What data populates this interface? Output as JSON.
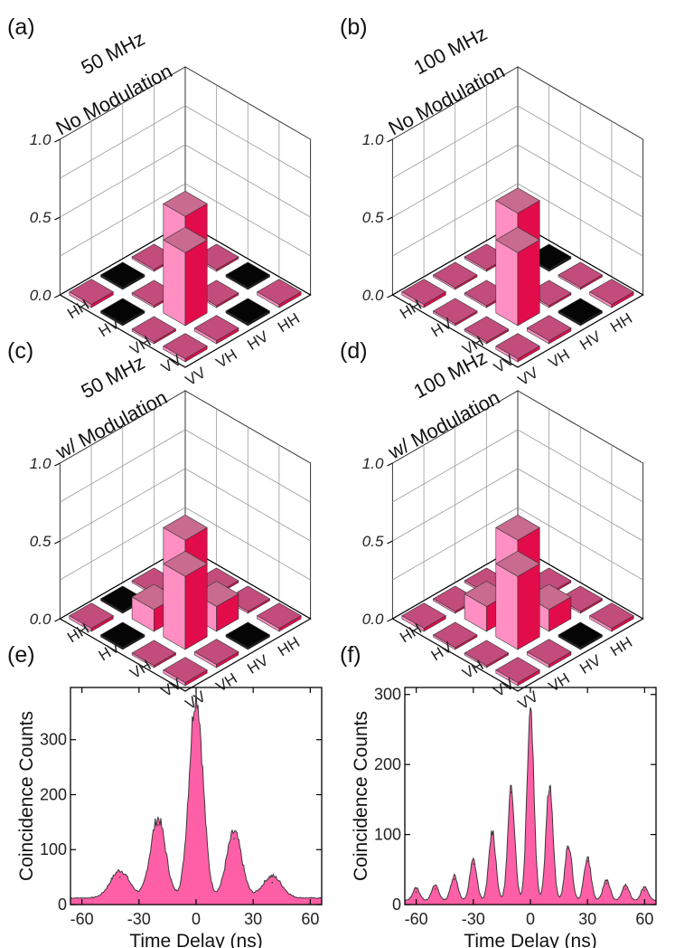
{
  "colors": {
    "bar_light": "#ff8fc2",
    "bar_mid": "#ef3f86",
    "bar_dark": "#e30c4a",
    "bar_top": "#c86b8f",
    "tile_top": "#c24d7d",
    "tile_edge": "#e81f5a",
    "dark_tile": "#050505",
    "hist_fill": "#ff5fa6",
    "hist_edge": "#3a3a3a",
    "grid": "#9a9a9a",
    "axis": "#000000"
  },
  "chart_data": [
    {
      "type": "bar3d",
      "panel": "(a)",
      "title_lines": [
        "50 MHz",
        "No Modulation"
      ],
      "row_labels": [
        "HH",
        "HV",
        "VH",
        "VV"
      ],
      "col_labels": [
        "HH",
        "HV",
        "VH",
        "VV"
      ],
      "z_ticks": [
        "0.0",
        "0.5",
        "1.0"
      ],
      "zlim": [
        0,
        1
      ],
      "values": [
        [
          0.02,
          0.01,
          0.01,
          0.02
        ],
        [
          0.01,
          0.47,
          0.01,
          0.01
        ],
        [
          0.01,
          0.01,
          0.47,
          0.02
        ],
        [
          0.02,
          0.01,
          0.01,
          0.02
        ]
      ],
      "dark_cells": [
        [
          0,
          2
        ],
        [
          1,
          3
        ],
        [
          2,
          0
        ],
        [
          3,
          1
        ]
      ]
    },
    {
      "type": "bar3d",
      "panel": "(b)",
      "title_lines": [
        "100 MHz",
        "No Modulation"
      ],
      "row_labels": [
        "HH",
        "HV",
        "VH",
        "VV"
      ],
      "col_labels": [
        "HH",
        "HV",
        "VH",
        "VV"
      ],
      "z_ticks": [
        "0.0",
        "0.5",
        "1.0"
      ],
      "zlim": [
        0,
        1
      ],
      "values": [
        [
          0.02,
          0.01,
          0.01,
          0.02
        ],
        [
          0.01,
          0.49,
          0.01,
          0.01
        ],
        [
          0.01,
          0.01,
          0.47,
          0.02
        ],
        [
          0.02,
          0.01,
          0.01,
          0.02
        ]
      ],
      "dark_cells": [
        [
          0,
          1
        ],
        [
          1,
          3
        ]
      ]
    },
    {
      "type": "bar3d",
      "panel": "(c)",
      "title_lines": [
        "50 MHz",
        "w/ Modulation"
      ],
      "row_labels": [
        "HH",
        "HV",
        "VH",
        "VV"
      ],
      "col_labels": [
        "HH",
        "HV",
        "VH",
        "VV"
      ],
      "z_ticks": [
        "0.0",
        "0.5",
        "1.0"
      ],
      "zlim": [
        0,
        1
      ],
      "values": [
        [
          0.02,
          0.01,
          0.01,
          0.02
        ],
        [
          0.01,
          0.47,
          0.16,
          0.01
        ],
        [
          0.01,
          0.14,
          0.47,
          0.02
        ],
        [
          0.02,
          0.01,
          0.01,
          0.02
        ]
      ],
      "dark_cells": [
        [
          1,
          3
        ],
        [
          2,
          0
        ],
        [
          3,
          1
        ]
      ]
    },
    {
      "type": "bar3d",
      "panel": "(d)",
      "title_lines": [
        "100 MHz",
        "w/ Modulation"
      ],
      "row_labels": [
        "HH",
        "HV",
        "VH",
        "VV"
      ],
      "col_labels": [
        "HH",
        "HV",
        "VH",
        "VV"
      ],
      "z_ticks": [
        "0.0",
        "0.5",
        "1.0"
      ],
      "zlim": [
        0,
        1
      ],
      "values": [
        [
          0.02,
          0.01,
          0.01,
          0.02
        ],
        [
          0.01,
          0.47,
          0.14,
          0.01
        ],
        [
          0.01,
          0.16,
          0.47,
          0.02
        ],
        [
          0.02,
          0.01,
          0.01,
          0.02
        ]
      ],
      "dark_cells": [
        [
          1,
          3
        ]
      ]
    },
    {
      "type": "area",
      "panel": "(e)",
      "xlabel": "Time Delay (ns)",
      "ylabel": "Coincidence Counts",
      "xlim": [
        -66,
        66
      ],
      "ylim": [
        0,
        395
      ],
      "x_ticks": [
        -60,
        -30,
        0,
        30,
        60
      ],
      "y_ticks": [
        0,
        100,
        200,
        300
      ],
      "baseline": 12,
      "peaks": [
        {
          "x": -40,
          "y": 50,
          "width": 5
        },
        {
          "x": -20,
          "y": 145,
          "width": 4
        },
        {
          "x": 0,
          "y": 370,
          "width": 3.6
        },
        {
          "x": 20,
          "y": 120,
          "width": 4
        },
        {
          "x": 40,
          "y": 40,
          "width": 5
        }
      ]
    },
    {
      "type": "area",
      "panel": "(f)",
      "xlabel": "Time Delay (ns)",
      "ylabel": "Coincidence Counts",
      "xlim": [
        -66,
        66
      ],
      "ylim": [
        0,
        310
      ],
      "x_ticks": [
        -60,
        -30,
        0,
        30,
        60
      ],
      "y_ticks": [
        0,
        100,
        200,
        300
      ],
      "baseline": 6,
      "peaks": [
        {
          "x": -60,
          "y": 18,
          "width": 1.8
        },
        {
          "x": -50,
          "y": 22,
          "width": 1.8
        },
        {
          "x": -40,
          "y": 36,
          "width": 1.8
        },
        {
          "x": -30,
          "y": 58,
          "width": 1.8
        },
        {
          "x": -20,
          "y": 100,
          "width": 1.8
        },
        {
          "x": -10,
          "y": 160,
          "width": 1.8
        },
        {
          "x": 0,
          "y": 278,
          "width": 1.8
        },
        {
          "x": 10,
          "y": 168,
          "width": 1.8
        },
        {
          "x": 20,
          "y": 80,
          "width": 1.8
        },
        {
          "x": 30,
          "y": 62,
          "width": 1.8
        },
        {
          "x": 40,
          "y": 30,
          "width": 1.8
        },
        {
          "x": 50,
          "y": 22,
          "width": 1.8
        },
        {
          "x": 60,
          "y": 20,
          "width": 1.8
        }
      ]
    }
  ]
}
